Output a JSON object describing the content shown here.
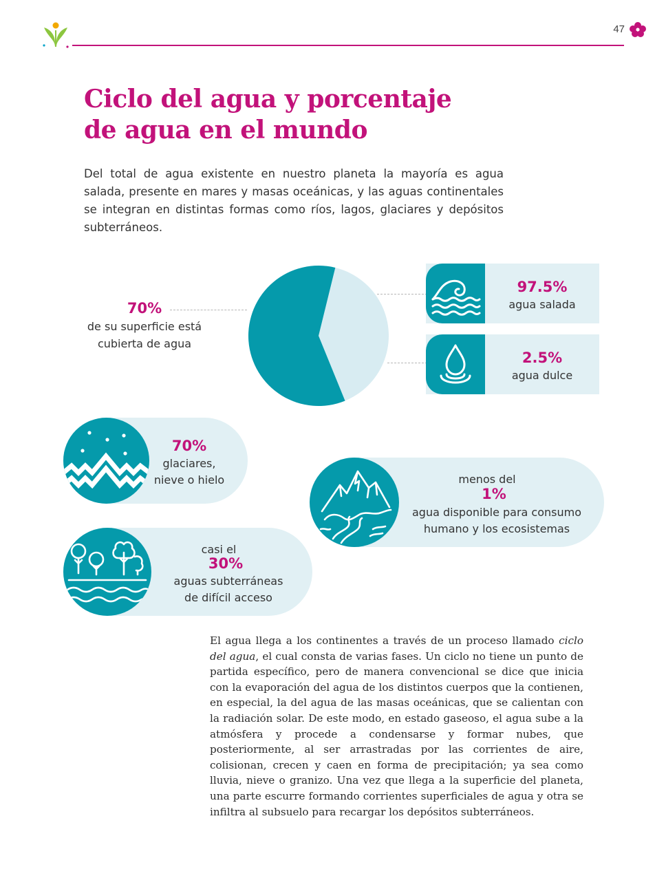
{
  "header": {
    "page_number": "47"
  },
  "title": {
    "line1": "Ciclo del agua y porcentaje",
    "line2": "de agua en el mundo"
  },
  "intro": "Del total de agua existente en nuestro planeta la mayoría es agua salada, presente en mares y masas oceánicas, y las aguas continentales se integran en distintas formas como ríos, lagos, glaciares y depósitos subterráneos.",
  "infographic": {
    "surface": {
      "percent": "70%",
      "line1": "de su superficie está",
      "line2": "cubierta de agua"
    },
    "salada": {
      "percent": "97.5%",
      "label": "agua salada",
      "icon": "wave-icon"
    },
    "dulce": {
      "percent": "2.5%",
      "label": "agua dulce",
      "icon": "water-drop-icon"
    },
    "glaciares": {
      "percent": "70%",
      "line1": "glaciares,",
      "line2": "nieve o hielo",
      "icon": "snowy-mountain-icon"
    },
    "consumo": {
      "prefix": "menos del",
      "percent": "1%",
      "line1": "agua disponible para consumo",
      "line2": "humano y los ecosistemas",
      "icon": "mountain-river-icon"
    },
    "subterranea": {
      "prefix": "casi el",
      "percent": "30%",
      "line1": "aguas subterráneas",
      "line2": "de difícil acceso",
      "icon": "trees-water-icon"
    },
    "colors": {
      "teal": "#059aab",
      "light_teal": "#d8ecf2",
      "card_bg": "#e1f0f4",
      "accent": "#c2127a"
    },
    "pie_fraction_dark": 0.6
  },
  "body": {
    "part1": "El agua llega a los continentes a través de un proceso llamado ",
    "italic": "ciclo del agua",
    "part2": ", el cual consta de varias fases. Un ciclo no tiene un punto de partida específico, pero de manera convencional se dice que inicia con la evaporación del agua de los distintos cuerpos que la contienen, en especial, la del agua de las masas oceánicas, que se calientan con la radiación solar. De este modo, en estado gaseoso, el agua sube a la atmósfera y procede a condensarse y formar nubes, que posteriormente, al ser arrastradas por las corrientes de aire, colisionan, crecen y caen en forma de precipitación; ya sea como lluvia, nieve o granizo. Una vez que llega a la superficie del planeta, una parte escurre formando corrientes superficiales de agua y otra se infiltra al subsuelo para recargar los depósitos subterráneos."
  }
}
